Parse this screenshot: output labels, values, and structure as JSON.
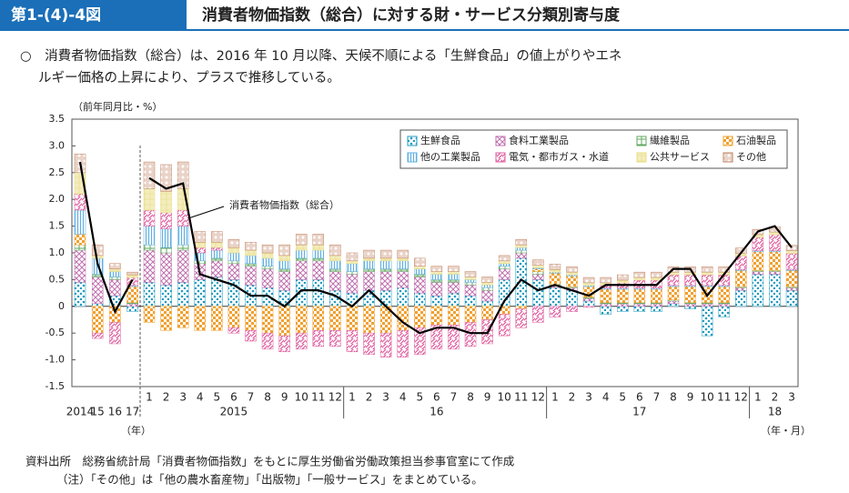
{
  "header": {
    "figure_no": "第1-(4)-4図",
    "title": "消費者物価指数（総合）に対する財・サービス分類別寄与度"
  },
  "summary": [
    "○　消費者物価指数（総合）は、2016 年 10 月以降、天候不順による「生鮮食品」の値上がりやエネ",
    "ルギー価格の上昇により、プラスで推移している。"
  ],
  "footer": [
    "資料出所　総務省統計局「消費者物価指数」をもとに厚生労働省労働政策担当参事官室にて作成",
    "（注）「その他」は「他の農水畜産物」「出版物」「一般サービス」をまとめている。"
  ],
  "chart_data": {
    "type": "bar",
    "stacked": true,
    "y_label": "（前年同月比・%）",
    "x_label_annual": "（年）",
    "x_label": "（年・月）",
    "ylim": [
      -1.5,
      3.5
    ],
    "yticks": [
      3.5,
      {
        "value": 3,
        "label": "3.0"
      },
      2.5,
      {
        "value": 2,
        "label": "2.0"
      },
      1.5,
      {
        "value": 1,
        "label": "1.0"
      },
      0.5,
      0,
      -0.5,
      {
        "value": -1,
        "label": "-1.0"
      },
      -1.5
    ],
    "categories": [
      null,
      null,
      null,
      null,
      "1",
      "2",
      "3",
      "4",
      "5",
      "6",
      "7",
      "8",
      "9",
      "10",
      "11",
      "12",
      "1",
      "2",
      "3",
      "4",
      "5",
      "6",
      "7",
      "8",
      "9",
      "10",
      "11",
      "12",
      "1",
      "2",
      "3",
      "4",
      "5",
      "6",
      "7",
      "8",
      "9",
      "10",
      "11",
      "12",
      "1",
      "2",
      "3"
    ],
    "category_years": [
      "2014",
      "15",
      "16",
      "17",
      null,
      null,
      null,
      null,
      null,
      "2015",
      null,
      null,
      null,
      null,
      null,
      null,
      null,
      null,
      null,
      null,
      null,
      "16",
      null,
      null,
      null,
      null,
      null,
      null,
      null,
      null,
      null,
      null,
      null,
      "17",
      null,
      null,
      null,
      null,
      null,
      null,
      null,
      "18",
      null
    ],
    "series": [
      {
        "name": "生鮮食品",
        "color": "#1f9bbf",
        "values": [
          0.45,
          0.05,
          0.2,
          -0.1,
          0.45,
          0.4,
          0.45,
          0.5,
          0.55,
          0.5,
          0.4,
          0.35,
          0.3,
          0.5,
          0.5,
          0.3,
          0.25,
          0.3,
          0.3,
          0.35,
          0.25,
          0.2,
          0.25,
          0.2,
          0.1,
          0.5,
          0.9,
          0.5,
          0.35,
          0.3,
          0.1,
          -0.15,
          -0.1,
          -0.1,
          -0.1,
          0.05,
          -0.05,
          -0.55,
          -0.2,
          0.3,
          0.6,
          0.6,
          0.3
        ]
      },
      {
        "name": "食料工業製品",
        "color": "#c070b0",
        "values": [
          0.6,
          0.5,
          0.3,
          0.05,
          0.6,
          0.6,
          0.6,
          0.3,
          0.3,
          0.3,
          0.35,
          0.35,
          0.35,
          0.35,
          0.35,
          0.35,
          0.35,
          0.35,
          0.35,
          0.3,
          0.3,
          0.25,
          0.2,
          0.2,
          0.2,
          0.2,
          0.1,
          0.1,
          0.05,
          0.05,
          0.05,
          0.05,
          0.05,
          0.05,
          0.05,
          0.05,
          0.05,
          0.05,
          0.05,
          0.05,
          0.05,
          0.05,
          0.05
        ]
      },
      {
        "name": "繊維製品",
        "color": "#60a860",
        "values": [
          0.1,
          0.05,
          0.05,
          0.02,
          0.1,
          0.1,
          0.1,
          0.05,
          0.05,
          0.05,
          0.05,
          0.05,
          0.05,
          0.05,
          0.05,
          0.05,
          0.05,
          0.05,
          0.05,
          0.05,
          0.05,
          0.05,
          0.05,
          0.05,
          0.05,
          0.05,
          0.05,
          0.05,
          0.02,
          0.02,
          0.02,
          0.02,
          0.02,
          0.02,
          0.02,
          0.02,
          0.02,
          0.02,
          0.02,
          0.02,
          0.02,
          0.02,
          0.02
        ]
      },
      {
        "name": "石油製品",
        "color": "#f0a030",
        "values": [
          0.2,
          -0.5,
          -0.3,
          0.3,
          -0.3,
          -0.45,
          -0.4,
          -0.45,
          -0.45,
          -0.4,
          -0.45,
          -0.5,
          -0.55,
          -0.5,
          -0.45,
          -0.45,
          -0.45,
          -0.5,
          -0.5,
          -0.45,
          -0.4,
          -0.35,
          -0.35,
          -0.3,
          -0.25,
          -0.15,
          -0.05,
          0.05,
          0.2,
          0.2,
          0.2,
          0.25,
          0.25,
          0.25,
          0.25,
          0.25,
          0.3,
          0.3,
          0.3,
          0.3,
          0.35,
          0.35,
          0.3
        ]
      },
      {
        "name": "他の工業製品",
        "color": "#60b0e0",
        "values": [
          0.45,
          0.3,
          0.1,
          0.02,
          0.35,
          0.35,
          0.35,
          0.15,
          0.15,
          0.15,
          0.15,
          0.15,
          0.15,
          0.15,
          0.15,
          0.15,
          0.15,
          0.15,
          0.15,
          0.15,
          0.1,
          0.1,
          0.1,
          0.05,
          0.05,
          0.05,
          0.05,
          0.02,
          0.02,
          0.02,
          0.02,
          0.02,
          0.02,
          0.02,
          0.02,
          0.02,
          0.02,
          0.02,
          0.02,
          0.02,
          0.02,
          0.02,
          0.02
        ]
      },
      {
        "name": "電気・都市ガス・水道",
        "color": "#e060a0",
        "values": [
          0.3,
          -0.1,
          -0.4,
          0.15,
          0.3,
          0.3,
          0.3,
          0.1,
          0.05,
          -0.1,
          -0.2,
          -0.3,
          -0.3,
          -0.3,
          -0.3,
          -0.3,
          -0.4,
          -0.4,
          -0.45,
          -0.5,
          -0.5,
          -0.45,
          -0.45,
          -0.45,
          -0.45,
          -0.4,
          -0.35,
          -0.3,
          -0.2,
          -0.1,
          -0.02,
          0.05,
          0.1,
          0.15,
          0.15,
          0.2,
          0.2,
          0.2,
          0.2,
          0.25,
          0.25,
          0.3,
          0.3
        ]
      },
      {
        "name": "公共サービス",
        "color": "#e8dc80",
        "values": [
          0.4,
          0.05,
          0.05,
          0.05,
          0.4,
          0.4,
          0.4,
          0.1,
          0.1,
          0.1,
          0.1,
          0.1,
          0.1,
          0.1,
          0.1,
          0.1,
          0.05,
          0.05,
          0.05,
          0.05,
          0.05,
          0.05,
          0.05,
          0.05,
          0.05,
          0.05,
          0.05,
          0.05,
          0.05,
          0.05,
          0.05,
          0.05,
          0.05,
          0.05,
          0.05,
          0.05,
          0.05,
          0.05,
          0.05,
          0.05,
          0.05,
          0.05,
          0.05
        ]
      },
      {
        "name": "その他",
        "color": "#c08060",
        "values": [
          0.35,
          0.2,
          0.1,
          0.05,
          0.5,
          0.5,
          0.5,
          0.2,
          0.2,
          0.15,
          0.15,
          0.15,
          0.2,
          0.2,
          0.2,
          0.2,
          0.15,
          0.15,
          0.15,
          0.15,
          0.15,
          0.1,
          0.1,
          0.1,
          0.1,
          0.1,
          0.1,
          0.1,
          0.1,
          0.1,
          0.1,
          0.1,
          0.1,
          0.1,
          0.1,
          0.1,
          0.1,
          0.1,
          0.1,
          0.1,
          0.1,
          0.1,
          0.1
        ]
      }
    ],
    "line": {
      "name": "消費者物価指数（総合）",
      "color": "#000000",
      "values": [
        2.7,
        0.8,
        -0.1,
        0.5,
        2.4,
        2.2,
        2.3,
        0.6,
        0.5,
        0.4,
        0.2,
        0.2,
        0,
        0.3,
        0.3,
        0.2,
        0,
        0.3,
        0,
        -0.3,
        -0.5,
        -0.4,
        -0.4,
        -0.5,
        -0.5,
        0.1,
        0.5,
        0.3,
        0.4,
        0.3,
        0.2,
        0.4,
        0.4,
        0.4,
        0.4,
        0.7,
        0.7,
        0.2,
        0.6,
        1,
        1.4,
        1.5,
        1.1
      ]
    }
  }
}
